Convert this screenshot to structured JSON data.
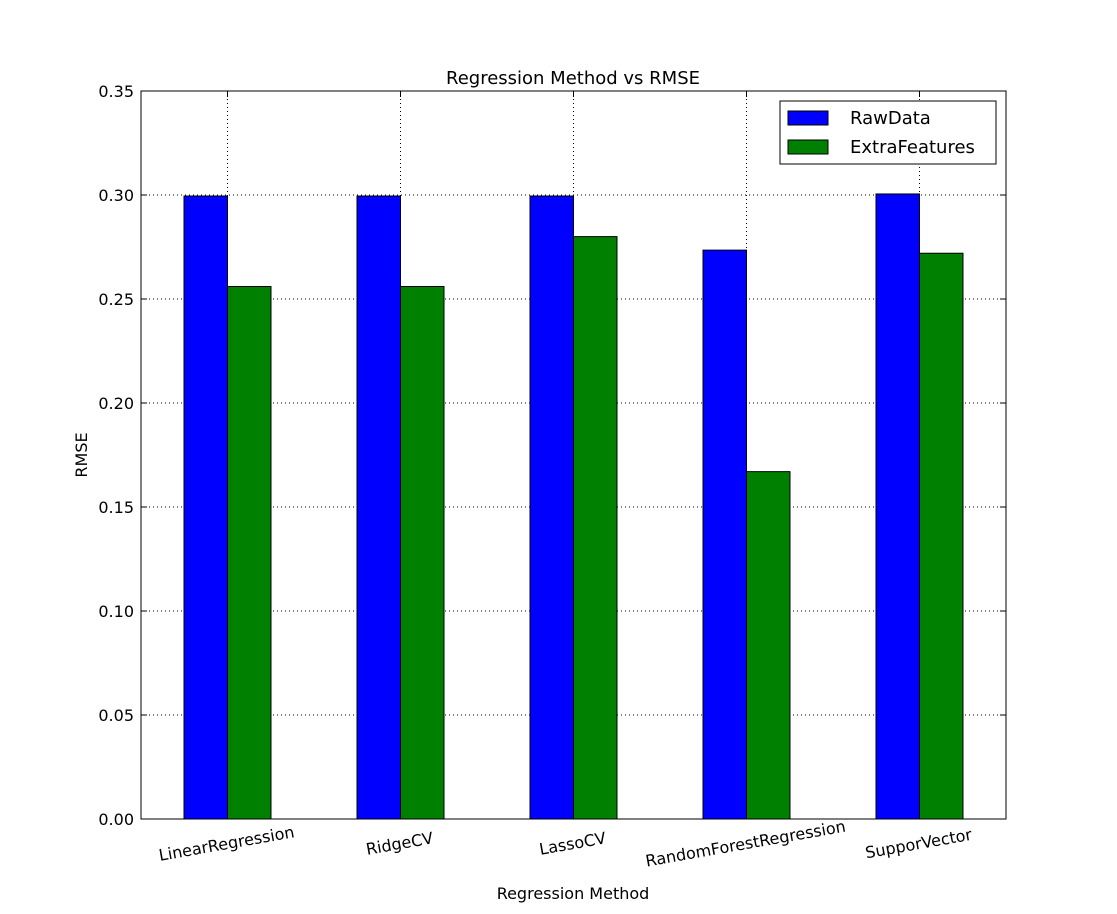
{
  "chart_data": {
    "type": "bar",
    "title": "Regression Method vs RMSE",
    "xlabel": "Regression Method",
    "ylabel": "RMSE",
    "categories": [
      "LinearRegression",
      "RidgeCV",
      "LassoCV",
      "RandomForestRegression",
      "SupporVector"
    ],
    "series": [
      {
        "name": "RawData",
        "color": "#0000ff",
        "values": [
          0.2995,
          0.2995,
          0.2995,
          0.2735,
          0.3005
        ]
      },
      {
        "name": "ExtraFeatures",
        "color": "#008000",
        "values": [
          0.256,
          0.256,
          0.28,
          0.167,
          0.272
        ]
      }
    ],
    "ylim": [
      0,
      0.35
    ],
    "yticks": [
      "0.00",
      "0.05",
      "0.10",
      "0.15",
      "0.20",
      "0.25",
      "0.30",
      "0.35"
    ],
    "grid": true,
    "legend_position": "top-right"
  }
}
